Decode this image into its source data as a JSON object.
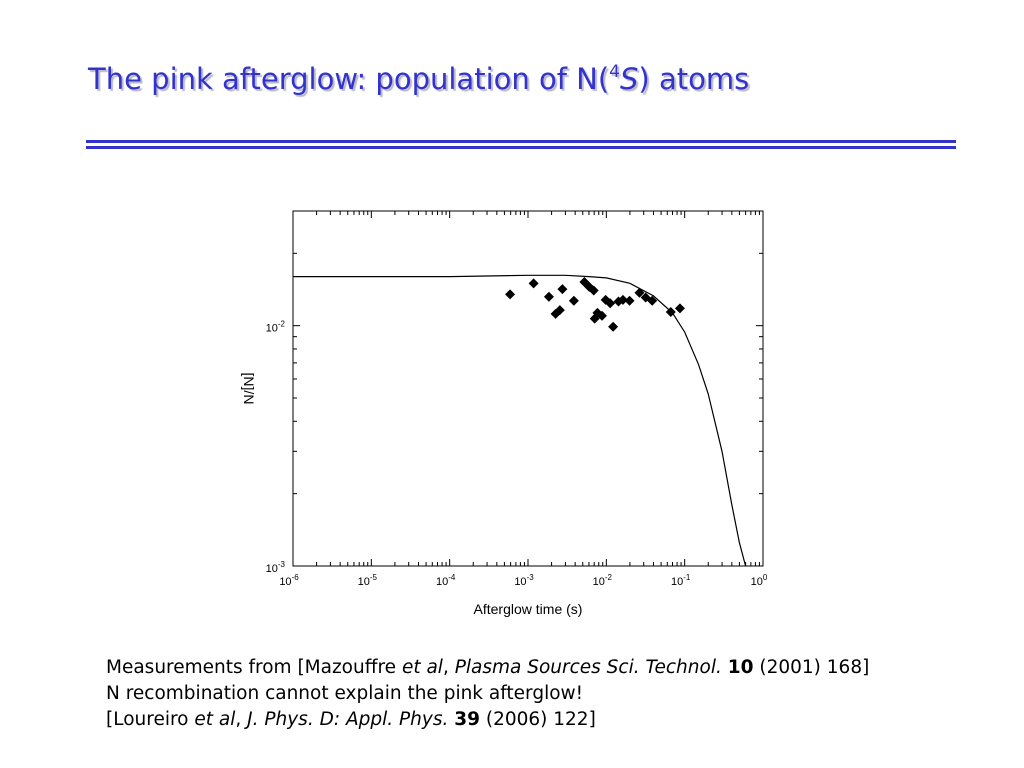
{
  "slide": {
    "title_pre": "The pink afterglow: population of N(",
    "title_sup": "4",
    "title_ital": "S",
    "title_post": ") atoms"
  },
  "references": [
    [
      {
        "t": "Measurements from [Mazouffre "
      },
      {
        "t": "et al",
        "s": "it"
      },
      {
        "t": ", "
      },
      {
        "t": "Plasma Sources Sci. Technol.",
        "s": "it"
      },
      {
        "t": " "
      },
      {
        "t": "10",
        "s": "b"
      },
      {
        "t": " (2001) 168]"
      }
    ],
    [
      {
        "t": "N recombination cannot explain the pink afterglow!"
      }
    ],
    [
      {
        "t": "[Loureiro "
      },
      {
        "t": "et al",
        "s": "it"
      },
      {
        "t": ", "
      },
      {
        "t": "J. Phys. D: Appl. Phys.",
        "s": "it"
      },
      {
        "t": " "
      },
      {
        "t": "39",
        "s": "b"
      },
      {
        "t": " (2006) 122]"
      }
    ]
  ],
  "chart_data": {
    "type": "scatter",
    "xlabel": "Afterglow time (s)",
    "ylabel": "[N]/N",
    "x_scale": "log",
    "y_scale": "log",
    "xlim": [
      1e-06,
      1
    ],
    "ylim": [
      0.001,
      0.03
    ],
    "x_ticks": [
      {
        "base": "10",
        "exp": "-6",
        "value": 1e-06
      },
      {
        "base": "10",
        "exp": "-5",
        "value": 1e-05
      },
      {
        "base": "10",
        "exp": "-4",
        "value": 0.0001
      },
      {
        "base": "10",
        "exp": "-3",
        "value": 0.001
      },
      {
        "base": "10",
        "exp": "-2",
        "value": 0.01
      },
      {
        "base": "10",
        "exp": "-1",
        "value": 0.1
      },
      {
        "base": "10",
        "exp": "0",
        "value": 1
      }
    ],
    "y_ticks": [
      {
        "base": "10",
        "exp": "-3",
        "value": 0.001
      },
      {
        "base": "10",
        "exp": "-2",
        "value": 0.01
      }
    ],
    "grid": false,
    "series": [
      {
        "kind": "scatter",
        "marker": "diamond",
        "color": "#000000",
        "points": [
          {
            "x": 0.00059,
            "y": 0.0135
          },
          {
            "x": 0.00118,
            "y": 0.015
          },
          {
            "x": 0.00185,
            "y": 0.0132
          },
          {
            "x": 0.00225,
            "y": 0.0112
          },
          {
            "x": 0.00255,
            "y": 0.0116
          },
          {
            "x": 0.00275,
            "y": 0.0142
          },
          {
            "x": 0.00385,
            "y": 0.0127
          },
          {
            "x": 0.00525,
            "y": 0.0152
          },
          {
            "x": 0.00605,
            "y": 0.0145
          },
          {
            "x": 0.0069,
            "y": 0.014
          },
          {
            "x": 0.0071,
            "y": 0.0107
          },
          {
            "x": 0.0077,
            "y": 0.0113
          },
          {
            "x": 0.0088,
            "y": 0.011
          },
          {
            "x": 0.0098,
            "y": 0.0128
          },
          {
            "x": 0.0112,
            "y": 0.0124
          },
          {
            "x": 0.0122,
            "y": 0.0099
          },
          {
            "x": 0.0143,
            "y": 0.0126
          },
          {
            "x": 0.0163,
            "y": 0.0128
          },
          {
            "x": 0.0198,
            "y": 0.0127
          },
          {
            "x": 0.0265,
            "y": 0.0137
          },
          {
            "x": 0.0318,
            "y": 0.0131
          },
          {
            "x": 0.0385,
            "y": 0.0127
          },
          {
            "x": 0.0665,
            "y": 0.0114
          },
          {
            "x": 0.087,
            "y": 0.0118
          }
        ]
      },
      {
        "kind": "line",
        "color": "#000000",
        "points": [
          {
            "x": 1e-06,
            "y": 0.016
          },
          {
            "x": 1e-05,
            "y": 0.016
          },
          {
            "x": 0.0001,
            "y": 0.016
          },
          {
            "x": 0.001,
            "y": 0.0162
          },
          {
            "x": 0.003,
            "y": 0.0162
          },
          {
            "x": 0.006,
            "y": 0.016
          },
          {
            "x": 0.01,
            "y": 0.0158
          },
          {
            "x": 0.02,
            "y": 0.015
          },
          {
            "x": 0.04,
            "y": 0.0133
          },
          {
            "x": 0.07,
            "y": 0.0113
          },
          {
            "x": 0.1,
            "y": 0.0094
          },
          {
            "x": 0.15,
            "y": 0.0069
          },
          {
            "x": 0.2,
            "y": 0.0052
          },
          {
            "x": 0.3,
            "y": 0.003
          },
          {
            "x": 0.4,
            "y": 0.0018
          },
          {
            "x": 0.5,
            "y": 0.00125
          },
          {
            "x": 0.6,
            "y": 0.00099
          }
        ]
      }
    ]
  }
}
